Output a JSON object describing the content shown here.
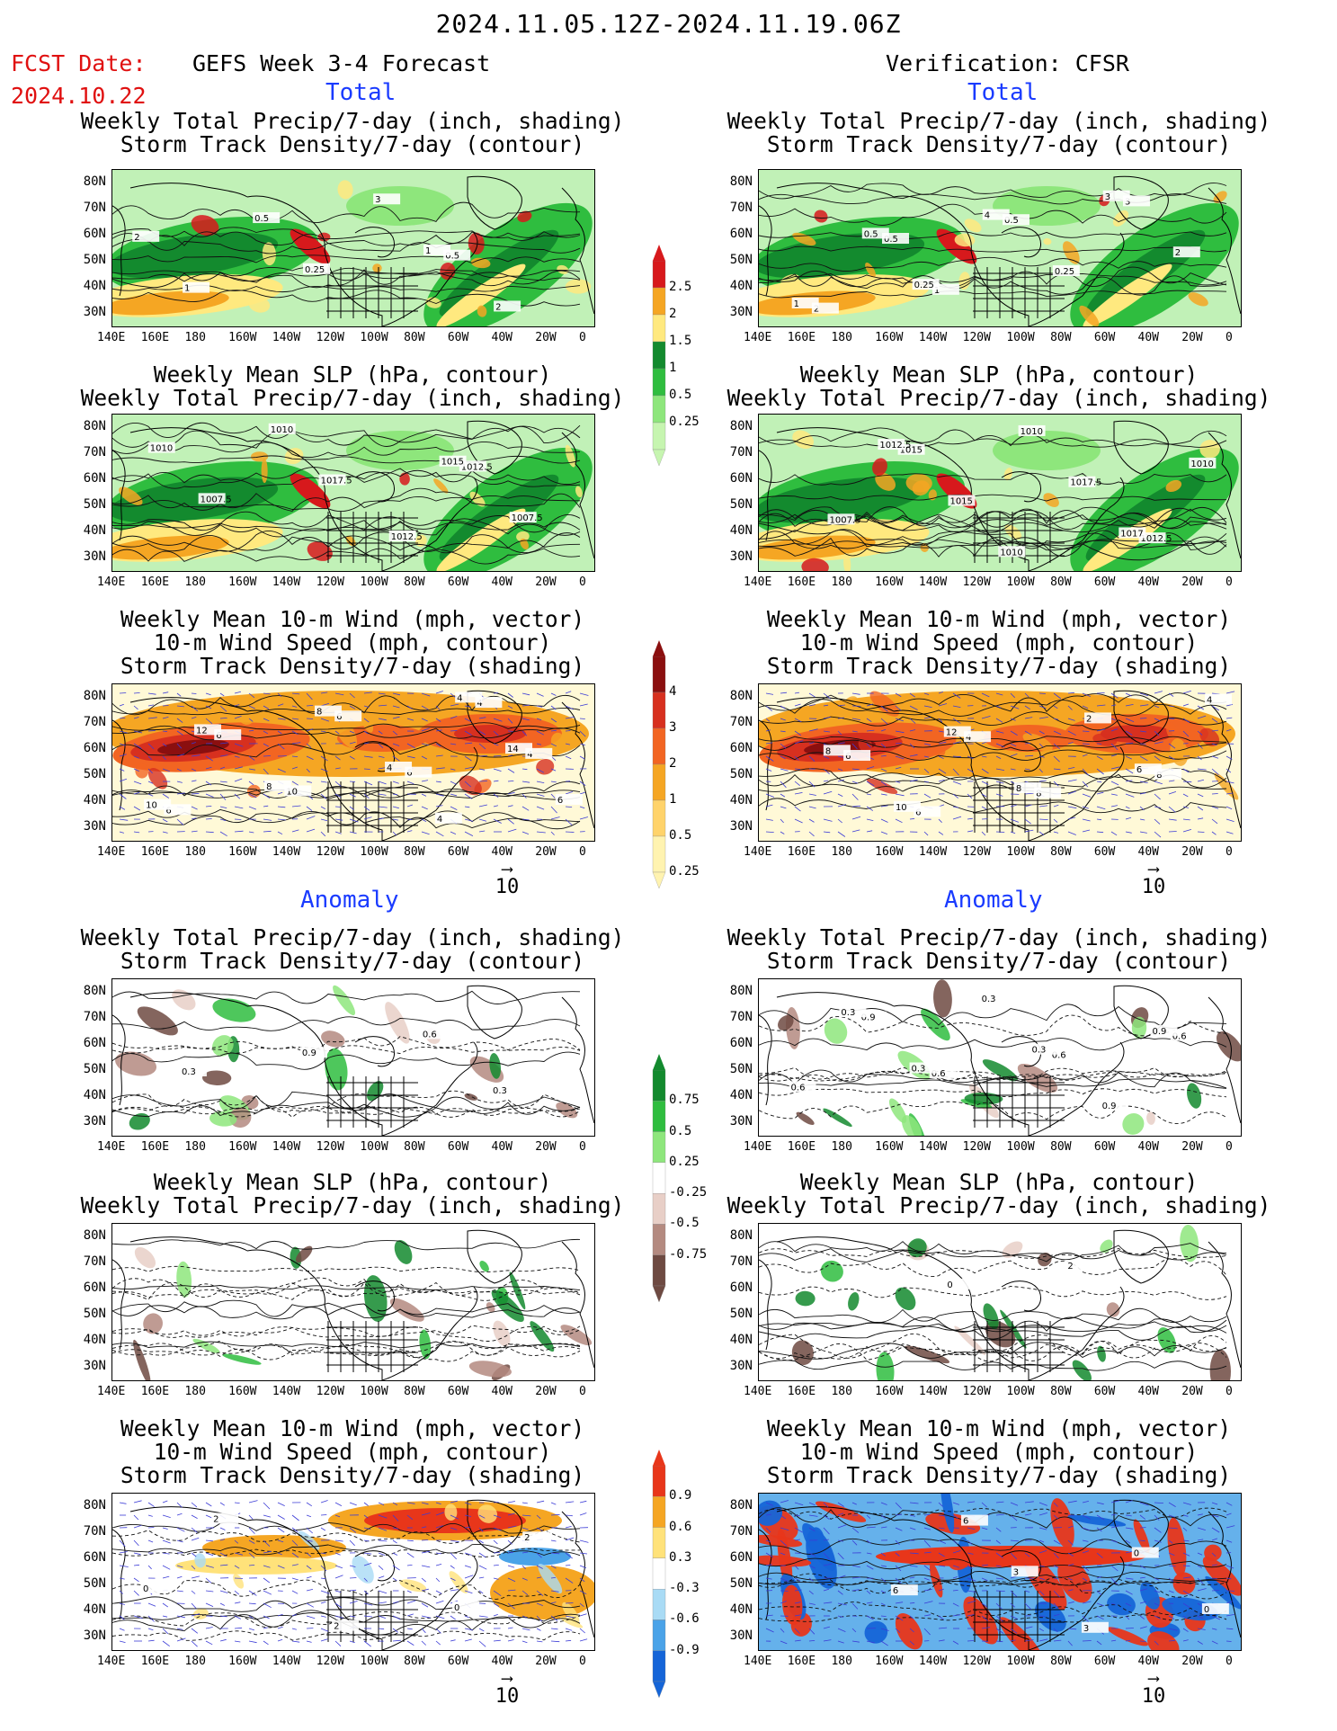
{
  "header": {
    "period": "2024.11.05.12Z-2024.11.19.06Z",
    "fcst_label": "FCST Date:",
    "fcst_date": "2024.10.22",
    "left_title": "GEFS Week 3-4 Forecast",
    "right_title": "Verification: CFSR"
  },
  "sections": {
    "total": "Total",
    "anomaly": "Anomaly"
  },
  "panel_titles": {
    "precip_std": [
      "Weekly Total Precip/7-day (inch, shading)",
      "Storm Track Density/7-day (contour)"
    ],
    "slp_precip": [
      "Weekly Mean SLP (hPa, contour)",
      "Weekly Total Precip/7-day (inch, shading)"
    ],
    "wind_std": [
      "Weekly Mean 10-m Wind (mph, vector)",
      "10-m Wind Speed (mph, contour)",
      "Storm Track Density/7-day (shading)"
    ]
  },
  "axes": {
    "lat_labels": [
      "80N",
      "70N",
      "60N",
      "50N",
      "40N",
      "30N"
    ],
    "lon_labels": [
      "140E",
      "160E",
      "180",
      "160W",
      "140W",
      "120W",
      "100W",
      "80W",
      "60W",
      "40W",
      "20W",
      "0"
    ]
  },
  "vector_ref": "10",
  "colorbars": {
    "precip_total": {
      "labels": [
        "2.5",
        "2",
        "1.5",
        "1",
        "0.5",
        "0.25"
      ],
      "colors": [
        "#d7191c",
        "#f5a623",
        "#ffe97f",
        "#138a2e",
        "#2fbd3f",
        "#8ee67c",
        "#c6f5b0"
      ]
    },
    "std_total": {
      "labels": [
        "4",
        "3",
        "2",
        "1",
        "0.5",
        "0.25"
      ],
      "colors": [
        "#8b0f0f",
        "#d7301f",
        "#f26522",
        "#f5a623",
        "#ffd36b",
        "#fff3b0"
      ]
    },
    "precip_anom": {
      "labels": [
        "0.75",
        "0.5",
        "0.25",
        "-0.25",
        "-0.5",
        "-0.75"
      ],
      "colors": [
        "#138a2e",
        "#2fbd3f",
        "#8ee67c",
        "#ffffff",
        "#e8cfc7",
        "#b48a80",
        "#6e4a42"
      ]
    },
    "std_anom": {
      "labels": [
        "0.9",
        "0.6",
        "0.3",
        "-0.3",
        "-0.6",
        "-0.9"
      ],
      "colors": [
        "#e8361a",
        "#f5a623",
        "#ffe27a",
        "#ffffff",
        "#a9dbf5",
        "#4aa3e8",
        "#1565d8"
      ]
    }
  },
  "map_labels": {
    "p1": [
      "0.5",
      "2",
      "0.5",
      "3",
      "2",
      "1",
      "0.25",
      "1"
    ],
    "p2": [
      "0.5",
      "0.5",
      "3",
      "2",
      "1",
      "0.25",
      "2",
      "0.5",
      "4",
      "3",
      "1",
      "0.25"
    ],
    "p3": [
      "1012.5",
      "1010",
      "1010",
      "1012.5",
      "1007.5",
      "1007.5",
      "1017.5",
      "1015"
    ],
    "p4": [
      "1015",
      "1010",
      "1012.5",
      "1007.5",
      "1015",
      "1017.5",
      "1010",
      "1012.5",
      "1010",
      "1017"
    ],
    "p5": [
      "4",
      "6",
      "10",
      "6",
      "4",
      "6",
      "6",
      "4",
      "10",
      "8",
      "4",
      "14",
      "12",
      "8",
      "4",
      "6"
    ],
    "p6": [
      "6",
      "8",
      "8",
      "6",
      "4",
      "2",
      "4",
      "10",
      "8",
      "6",
      "8",
      "12"
    ],
    "p7": [
      "0.3",
      "0.3",
      "0.9",
      "0.6"
    ],
    "p8": [
      "0.6",
      "0.6",
      "0.6",
      "0.9",
      "0.3",
      "0.9",
      "0.6",
      "0.3",
      "0.3",
      "0.9",
      "0.3"
    ],
    "p9": [],
    "p10": [
      "0",
      "2"
    ],
    "p11": [
      "2",
      "2",
      "2",
      "0",
      "0"
    ],
    "p12": [
      "6",
      "3",
      "0",
      "6",
      "3",
      "0"
    ]
  }
}
